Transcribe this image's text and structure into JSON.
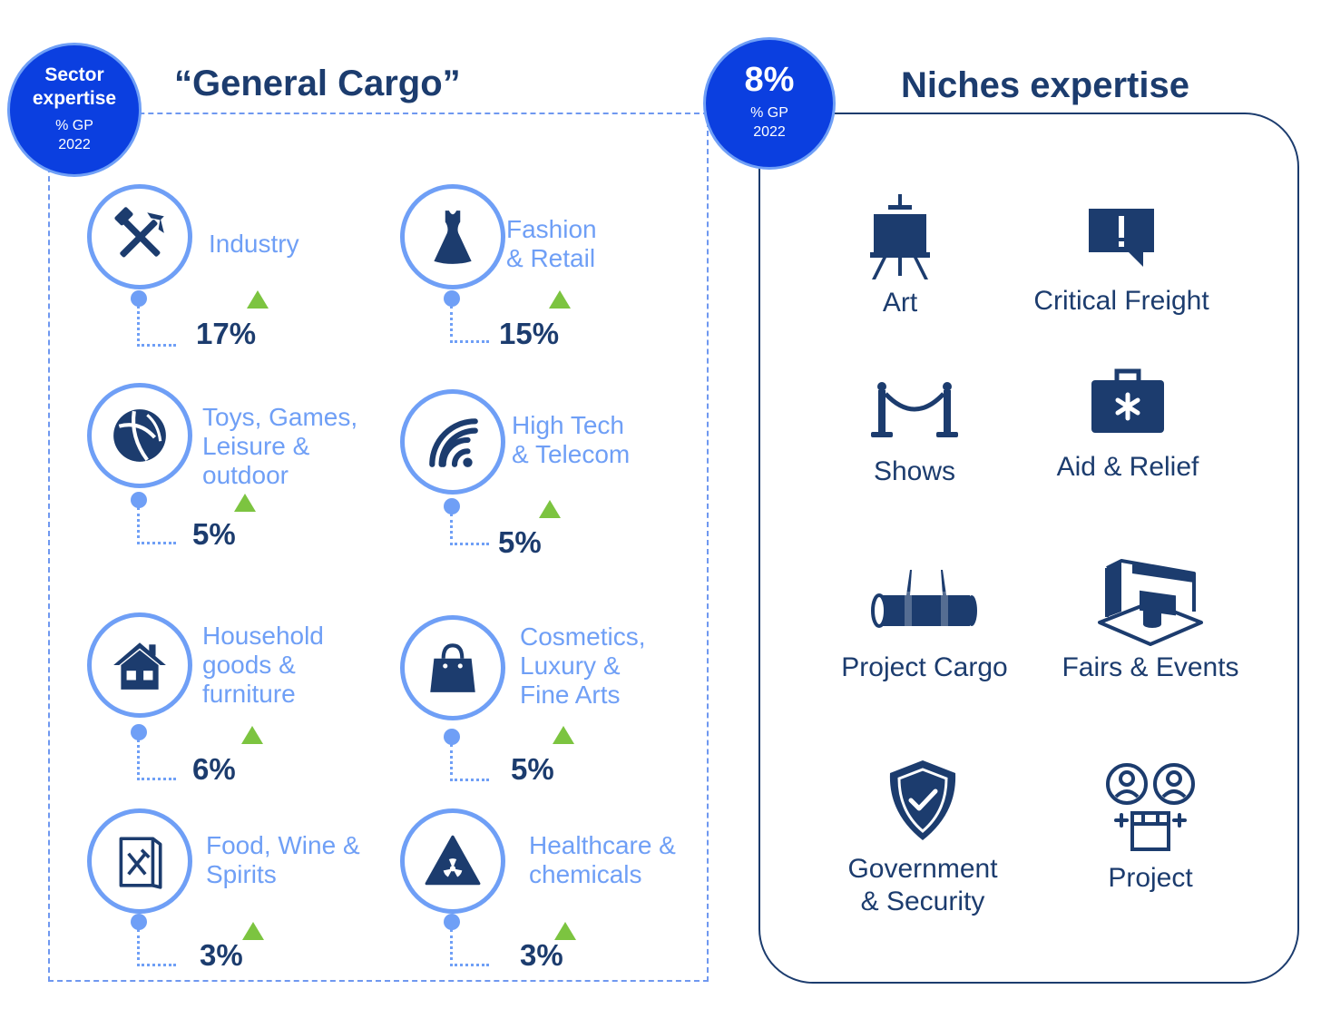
{
  "left": {
    "badge": {
      "line1": "Sector",
      "line2": "expertise",
      "gp": "% GP",
      "year": "2022"
    },
    "title": "“General Cargo”",
    "sectors": [
      {
        "label": "Industry",
        "pct": "17%",
        "icon": "hammer-pick-icon",
        "trend": "up"
      },
      {
        "label": "Fashion\n& Retail",
        "pct": "15%",
        "icon": "dress-icon",
        "trend": "up"
      },
      {
        "label": "Toys, Games,\nLeisure &\noutdoor",
        "pct": "5%",
        "icon": "beach-ball-icon",
        "trend": "up"
      },
      {
        "label": "High Tech\n& Telecom",
        "pct": "5%",
        "icon": "wifi-signal-icon",
        "trend": "up"
      },
      {
        "label": "Household\ngoods &\nfurniture",
        "pct": "6%",
        "icon": "house-icon",
        "trend": "up"
      },
      {
        "label": "Cosmetics,\nLuxury &\nFine Arts",
        "pct": "5%",
        "icon": "handbag-icon",
        "trend": "up"
      },
      {
        "label": "Food, Wine &\nSpirits",
        "pct": "3%",
        "icon": "menu-cutlery-icon",
        "trend": "up"
      },
      {
        "label": "Healthcare &\nchemicals",
        "pct": "3%",
        "icon": "radiation-warning-icon",
        "trend": "up"
      }
    ]
  },
  "right": {
    "badge": {
      "value": "8%",
      "gp": "% GP",
      "year": "2022"
    },
    "title": "Niches expertise",
    "niches": [
      {
        "label": "Art",
        "icon": "easel-icon"
      },
      {
        "label": "Critical Freight",
        "icon": "alert-message-icon"
      },
      {
        "label": "Shows",
        "icon": "stanchion-rope-icon"
      },
      {
        "label": "Aid & Relief",
        "icon": "first-aid-kit-icon"
      },
      {
        "label": "Project Cargo",
        "icon": "pipe-lift-icon"
      },
      {
        "label": "Fairs & Events",
        "icon": "exhibition-booth-icon"
      },
      {
        "label": "Government\n& Security",
        "icon": "shield-check-icon"
      },
      {
        "label": "Project",
        "icon": "people-package-icon"
      }
    ]
  },
  "colors": {
    "navy": "#1c3c6e",
    "light_blue": "#6f9ff6",
    "badge_blue": "#0b3fe0",
    "green": "#7cc440"
  }
}
